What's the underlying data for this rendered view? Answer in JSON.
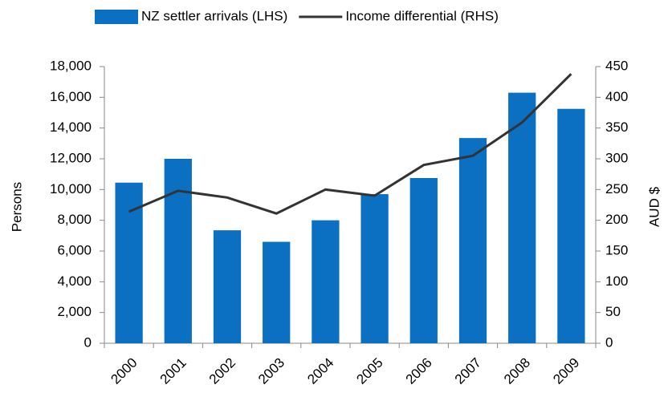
{
  "chart_data": {
    "type": "bar",
    "categories": [
      "2000",
      "2001",
      "2002",
      "2003",
      "2004",
      "2005",
      "2006",
      "2007",
      "2008",
      "2009"
    ],
    "series": [
      {
        "name": "NZ settler arrivals (LHS)",
        "type": "bar",
        "axis": "y",
        "color": "#0b6fc2",
        "values": [
          10450,
          12000,
          7350,
          6600,
          8000,
          9700,
          10750,
          13350,
          16300,
          15250
        ]
      },
      {
        "name": "Income differential (RHS)",
        "type": "line",
        "axis": "y2",
        "color": "#333333",
        "values": [
          214,
          248,
          237,
          211,
          250,
          240,
          290,
          305,
          359,
          438
        ]
      }
    ],
    "ylabel": "Persons",
    "y2label": "AUD $",
    "ylim": [
      0,
      18000
    ],
    "yticks": [
      0,
      {
        "value": 2000,
        "label": "2,000"
      },
      {
        "value": 4000,
        "label": "4,000"
      },
      {
        "value": 6000,
        "label": "6,000"
      },
      {
        "value": 8000,
        "label": "8,000"
      },
      {
        "value": 10000,
        "label": "10,000"
      },
      {
        "value": 12000,
        "label": "12,000"
      },
      {
        "value": 14000,
        "label": "14,000"
      },
      {
        "value": 16000,
        "label": "16,000"
      },
      {
        "value": 18000,
        "label": "18,000"
      }
    ],
    "y2lim": [
      0,
      450
    ],
    "y2ticks": [
      0,
      50,
      100,
      150,
      200,
      250,
      300,
      350,
      400,
      450
    ],
    "grid": false,
    "legend": "top"
  }
}
